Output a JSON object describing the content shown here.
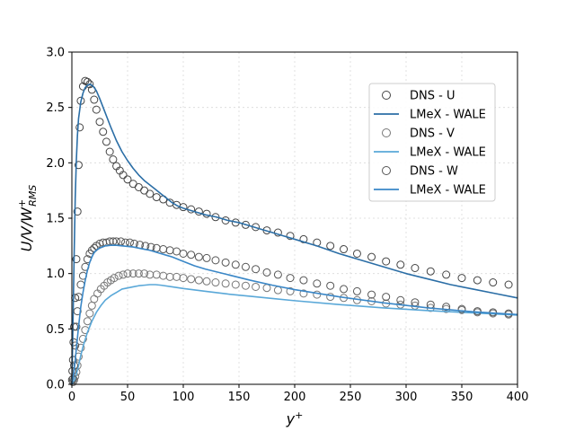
{
  "chart_data": {
    "type": "line",
    "xlabel_base": "y",
    "xlabel_sup": "+",
    "ylabel_base": "U/V/W",
    "ylabel_sup": "+",
    "ylabel_sub": "RMS",
    "xlim": [
      0,
      400
    ],
    "ylim": [
      0,
      3.0
    ],
    "xticks": [
      0,
      50,
      100,
      150,
      200,
      250,
      300,
      350,
      400
    ],
    "yticks": [
      0.0,
      0.5,
      1.0,
      1.5,
      2.0,
      2.5,
      3.0
    ],
    "xtick_labels": [
      "0",
      "50",
      "100",
      "150",
      "200",
      "250",
      "300",
      "350",
      "400"
    ],
    "ytick_labels": [
      "0.0",
      "0.5",
      "1.0",
      "1.5",
      "2.0",
      "2.5",
      "3.0"
    ],
    "grid": true,
    "legend_position": "upper-right",
    "series": [
      {
        "name": "DNS - U",
        "kind": "markers",
        "color": "#444444",
        "x": [
          0.2,
          0.5,
          1,
          1.5,
          2,
          3,
          4,
          5,
          6,
          7,
          8,
          10,
          12,
          14,
          16,
          18,
          20,
          22,
          25,
          28,
          31,
          34,
          37,
          40,
          43,
          46,
          50,
          55,
          60,
          65,
          70,
          76,
          82,
          88,
          94,
          100,
          107,
          114,
          121,
          129,
          138,
          147,
          156,
          165,
          175,
          185,
          196,
          208,
          220,
          232,
          244,
          256,
          269,
          282,
          295,
          308,
          322,
          336,
          350,
          364,
          378,
          392
        ],
        "y": [
          0.04,
          0.12,
          0.22,
          0.38,
          0.52,
          0.78,
          1.13,
          1.56,
          1.98,
          2.32,
          2.56,
          2.69,
          2.74,
          2.73,
          2.71,
          2.66,
          2.57,
          2.48,
          2.37,
          2.28,
          2.19,
          2.1,
          2.03,
          1.97,
          1.93,
          1.89,
          1.85,
          1.81,
          1.78,
          1.75,
          1.72,
          1.69,
          1.67,
          1.64,
          1.62,
          1.6,
          1.58,
          1.56,
          1.54,
          1.51,
          1.48,
          1.46,
          1.44,
          1.42,
          1.39,
          1.37,
          1.34,
          1.31,
          1.28,
          1.25,
          1.22,
          1.18,
          1.15,
          1.11,
          1.08,
          1.05,
          1.02,
          0.99,
          0.96,
          0.94,
          0.92,
          0.9
        ]
      },
      {
        "name": "LMeX - WALE",
        "kind": "line",
        "color": "#2b6ea6",
        "x": [
          0,
          1,
          2,
          3,
          4,
          5,
          6,
          8,
          10,
          12,
          14,
          16,
          18,
          20,
          22,
          25,
          30,
          35,
          40,
          45,
          50,
          55,
          60,
          65,
          70,
          75,
          80,
          85,
          90,
          95,
          100,
          110,
          120,
          130,
          140,
          150,
          160,
          170,
          180,
          190,
          200,
          220,
          240,
          260,
          280,
          300,
          320,
          340,
          360,
          380,
          400
        ],
        "y": [
          0.0,
          0.55,
          1.15,
          1.68,
          2.02,
          2.25,
          2.4,
          2.55,
          2.63,
          2.68,
          2.7,
          2.71,
          2.7,
          2.68,
          2.65,
          2.58,
          2.45,
          2.32,
          2.2,
          2.1,
          2.02,
          1.95,
          1.89,
          1.84,
          1.8,
          1.76,
          1.72,
          1.68,
          1.64,
          1.61,
          1.59,
          1.56,
          1.53,
          1.51,
          1.48,
          1.46,
          1.43,
          1.4,
          1.37,
          1.34,
          1.31,
          1.25,
          1.18,
          1.12,
          1.06,
          1.0,
          0.95,
          0.9,
          0.86,
          0.82,
          0.78
        ]
      },
      {
        "name": "DNS - V",
        "kind": "markers",
        "color": "#777777",
        "x": [
          1,
          2,
          3,
          4,
          5,
          6,
          8,
          10,
          12,
          14,
          16,
          18,
          20,
          23,
          26,
          29,
          32,
          35,
          38,
          42,
          46,
          50,
          55,
          60,
          65,
          70,
          76,
          82,
          88,
          94,
          100,
          107,
          114,
          121,
          129,
          138,
          147,
          156,
          165,
          175,
          185,
          196,
          208,
          220,
          232,
          244,
          256,
          269,
          282,
          295,
          308,
          322,
          336,
          350,
          364,
          378,
          392
        ],
        "y": [
          0.02,
          0.04,
          0.07,
          0.11,
          0.17,
          0.25,
          0.33,
          0.41,
          0.49,
          0.57,
          0.64,
          0.71,
          0.77,
          0.82,
          0.86,
          0.89,
          0.92,
          0.94,
          0.96,
          0.98,
          0.99,
          1.0,
          1.0,
          1.0,
          1.0,
          0.99,
          0.99,
          0.98,
          0.97,
          0.97,
          0.96,
          0.95,
          0.94,
          0.93,
          0.92,
          0.91,
          0.9,
          0.89,
          0.88,
          0.87,
          0.85,
          0.84,
          0.82,
          0.81,
          0.79,
          0.78,
          0.76,
          0.75,
          0.73,
          0.72,
          0.71,
          0.69,
          0.68,
          0.67,
          0.65,
          0.64,
          0.63
        ]
      },
      {
        "name": "LMeX - WALE",
        "kind": "line",
        "color": "#5aa8d8",
        "x": [
          0,
          2,
          4,
          6,
          8,
          10,
          14,
          18,
          22,
          26,
          30,
          35,
          40,
          45,
          50,
          55,
          60,
          65,
          70,
          75,
          80,
          90,
          100,
          120,
          140,
          160,
          180,
          200,
          240,
          280,
          320,
          360,
          400
        ],
        "y": [
          0.0,
          0.03,
          0.09,
          0.17,
          0.26,
          0.34,
          0.47,
          0.57,
          0.65,
          0.71,
          0.76,
          0.8,
          0.83,
          0.86,
          0.87,
          0.88,
          0.89,
          0.895,
          0.9,
          0.9,
          0.895,
          0.88,
          0.865,
          0.84,
          0.815,
          0.795,
          0.775,
          0.755,
          0.72,
          0.69,
          0.665,
          0.645,
          0.625
        ]
      },
      {
        "name": "DNS - W",
        "kind": "markers",
        "color": "#555555",
        "x": [
          1,
          2,
          3,
          4,
          5,
          6,
          8,
          10,
          12,
          14,
          16,
          18,
          20,
          22,
          25,
          28,
          31,
          34,
          37,
          40,
          44,
          48,
          52,
          56,
          61,
          66,
          71,
          76,
          82,
          88,
          94,
          100,
          107,
          114,
          121,
          129,
          138,
          147,
          156,
          165,
          175,
          185,
          196,
          208,
          220,
          232,
          244,
          256,
          269,
          282,
          295,
          308,
          322,
          336,
          350,
          364,
          378,
          392
        ],
        "y": [
          0.05,
          0.17,
          0.35,
          0.52,
          0.66,
          0.79,
          0.9,
          0.98,
          1.06,
          1.13,
          1.18,
          1.21,
          1.23,
          1.25,
          1.27,
          1.28,
          1.28,
          1.29,
          1.29,
          1.29,
          1.29,
          1.28,
          1.28,
          1.27,
          1.26,
          1.25,
          1.24,
          1.23,
          1.22,
          1.21,
          1.2,
          1.18,
          1.17,
          1.15,
          1.14,
          1.12,
          1.1,
          1.08,
          1.06,
          1.04,
          1.01,
          0.99,
          0.96,
          0.94,
          0.91,
          0.89,
          0.86,
          0.84,
          0.81,
          0.79,
          0.76,
          0.74,
          0.72,
          0.7,
          0.68,
          0.66,
          0.65,
          0.64
        ]
      },
      {
        "name": "LMeX - WALE",
        "kind": "line",
        "color": "#3a87c7",
        "x": [
          0,
          2,
          4,
          6,
          8,
          10,
          12,
          14,
          16,
          18,
          20,
          22,
          25,
          30,
          35,
          40,
          45,
          50,
          55,
          60,
          65,
          70,
          75,
          80,
          85,
          90,
          95,
          100,
          110,
          120,
          140,
          160,
          180,
          200,
          240,
          280,
          320,
          360,
          400
        ],
        "y": [
          0.0,
          0.12,
          0.32,
          0.52,
          0.7,
          0.83,
          0.94,
          1.03,
          1.1,
          1.15,
          1.19,
          1.21,
          1.23,
          1.25,
          1.255,
          1.255,
          1.25,
          1.245,
          1.24,
          1.23,
          1.22,
          1.21,
          1.195,
          1.18,
          1.165,
          1.15,
          1.13,
          1.11,
          1.07,
          1.04,
          0.99,
          0.94,
          0.895,
          0.855,
          0.79,
          0.735,
          0.69,
          0.655,
          0.63
        ]
      }
    ]
  }
}
